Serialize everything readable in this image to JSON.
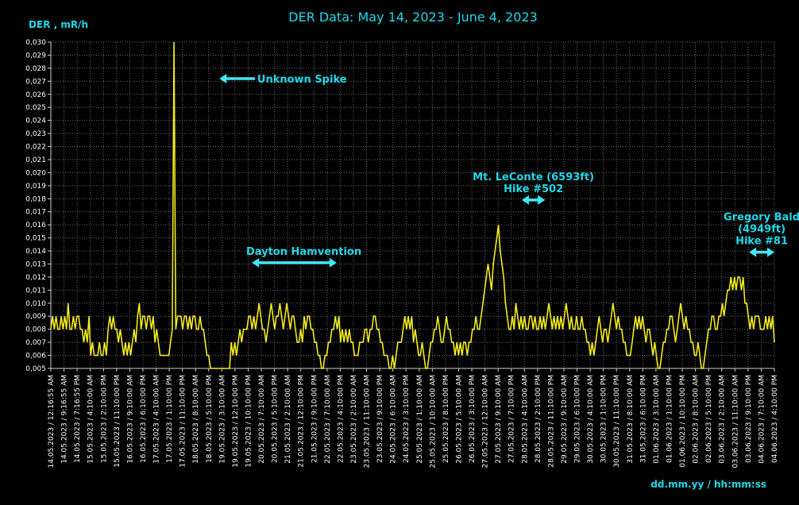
{
  "chart_data": {
    "type": "line",
    "title": "DER Data: May 14, 2023 - June 4, 2023",
    "ylabel": "DER , mR/h",
    "xlabel": "dd.mm.yy / hh:mm:ss",
    "ylim": [
      0.005,
      0.03
    ],
    "ytick_step": 0.001,
    "grid": true,
    "line_color": "#f4ec1c",
    "xticks": [
      "14.05.2023 / 12:16:55 AM",
      "14.05.2023 / 9:16:55 AM",
      "14.05.2023 / 7:16:55 PM",
      "15.05.2023 / 4:10:00 AM",
      "15.05.2023 / 2:10:00 PM",
      "15.05.2023 / 11:10:00 PM",
      "16.05.2023 / 9:10:00 AM",
      "16.05.2023 / 6:10:00 PM",
      "17.05.2023 / 4:10:00 AM",
      "17.05.2023 / 1:10:00 PM",
      "17.05.2023 / 11:10:00 PM",
      "18.05.2023 / 8:10:00 AM",
      "18.05.2023 / 5:10:00 PM",
      "19.05.2023 / 3:10:00 AM",
      "19.05.2023 / 12:10:00 PM",
      "19.05.2023 / 10:10:00 PM",
      "20.05.2023 / 7:10:00 AM",
      "20.05.2023 / 5:10:00 PM",
      "21.05.2023 / 2:10:00 AM",
      "21.05.2023 / 12:10:00 PM",
      "21.05.2023 / 9:10:00 PM",
      "22.05.2023 / 7:10:00 AM",
      "22.05.2023 / 4:10:00 PM",
      "23.05.2023 / 2:10:00 AM",
      "23.05.2023 / 11:10:00 AM",
      "23.05.2023 / 9:10:00 PM",
      "24.05.2023 / 6:10:00 AM",
      "24.05.2023 / 3:10:00 PM",
      "25.05.2023 / 1:10:00 AM",
      "25.05.2023 / 10:10:00 AM",
      "25.05.2023 / 8:10:00 PM",
      "26.05.2023 / 5:10:00 AM",
      "26.05.2023 / 3:10:00 PM",
      "27.05.2023 / 12:10:00 AM",
      "27.05.2023 / 9:10:00 AM",
      "27.05.2023 / 7:10:00 PM",
      "28.05.2023 / 4:10:00 AM",
      "28.05.2023 / 2:10:00 PM",
      "28.05.2023 / 11:10:00 PM",
      "29.05.2023 / 9:10:00 AM",
      "29.05.2023 / 6:10:00 PM",
      "30.05.2023 / 4:10:00 AM",
      "30.05.2023 / 1:10:00 PM",
      "30.05.2023 / 11:10:00 PM",
      "31.05.2023 / 8:10:00 AM",
      "31.05.2023 / 6:10:00 PM",
      "01.06.2023 / 3:10:00 AM",
      "01.06.2023 / 1:10:00 PM",
      "01.06.2023 / 10:10:00 PM",
      "02.06.2023 / 8:10:00 AM",
      "02.06.2023 / 5:10:00 PM",
      "03.06.2023 / 2:10:00 AM",
      "03.06.2023 / 11:10:00 AM",
      "03.06.2023 / 9:10:00 PM",
      "04.06.2023 / 7:10:00 AM",
      "04.06.2023 / 4:10:00 PM"
    ],
    "series": [
      {
        "values": [
          0.008,
          0.009,
          0.008,
          0.009,
          0.008,
          0.008,
          0.009,
          0.008,
          0.009,
          0.008,
          0.01,
          0.008,
          0.008,
          0.009,
          0.008,
          0.009,
          0.009,
          0.008,
          0.008,
          0.007,
          0.008,
          0.007,
          0.009,
          0.006,
          0.007,
          0.006,
          0.006,
          0.006,
          0.007,
          0.006,
          0.006,
          0.007,
          0.006,
          0.008,
          0.009,
          0.008,
          0.009,
          0.008,
          0.008,
          0.007,
          0.008,
          0.007,
          0.006,
          0.007,
          0.006,
          0.007,
          0.006,
          0.007,
          0.008,
          0.007,
          0.009,
          0.01,
          0.008,
          0.009,
          0.009,
          0.008,
          0.009,
          0.009,
          0.008,
          0.009,
          0.007,
          0.008,
          0.007,
          0.006,
          0.006,
          0.006,
          0.006,
          0.006,
          0.006,
          0.007,
          0.008,
          0.03,
          0.008,
          0.009,
          0.009,
          0.009,
          0.008,
          0.009,
          0.009,
          0.008,
          0.009,
          0.008,
          0.009,
          0.009,
          0.008,
          0.008,
          0.009,
          0.008,
          0.008,
          0.007,
          0.006,
          0.006,
          0.005,
          0.005,
          0.005,
          0.005,
          0.005,
          0.005,
          0.005,
          0.005,
          0.005,
          0.005,
          0.005,
          0.005,
          0.007,
          0.006,
          0.007,
          0.006,
          0.007,
          0.008,
          0.007,
          0.008,
          0.008,
          0.008,
          0.009,
          0.009,
          0.008,
          0.009,
          0.008,
          0.009,
          0.01,
          0.009,
          0.008,
          0.008,
          0.007,
          0.008,
          0.009,
          0.01,
          0.009,
          0.008,
          0.009,
          0.009,
          0.01,
          0.009,
          0.008,
          0.009,
          0.01,
          0.009,
          0.008,
          0.009,
          0.009,
          0.008,
          0.007,
          0.007,
          0.008,
          0.007,
          0.009,
          0.008,
          0.009,
          0.009,
          0.008,
          0.008,
          0.007,
          0.007,
          0.006,
          0.006,
          0.005,
          0.005,
          0.006,
          0.006,
          0.007,
          0.007,
          0.008,
          0.008,
          0.009,
          0.008,
          0.009,
          0.007,
          0.008,
          0.007,
          0.008,
          0.007,
          0.008,
          0.007,
          0.007,
          0.006,
          0.006,
          0.006,
          0.007,
          0.007,
          0.007,
          0.008,
          0.008,
          0.007,
          0.008,
          0.008,
          0.009,
          0.009,
          0.008,
          0.008,
          0.007,
          0.007,
          0.006,
          0.006,
          0.006,
          0.005,
          0.005,
          0.006,
          0.005,
          0.006,
          0.007,
          0.007,
          0.007,
          0.008,
          0.009,
          0.008,
          0.009,
          0.008,
          0.009,
          0.007,
          0.008,
          0.007,
          0.006,
          0.006,
          0.007,
          0.006,
          0.005,
          0.005,
          0.006,
          0.007,
          0.007,
          0.008,
          0.008,
          0.009,
          0.008,
          0.007,
          0.007,
          0.008,
          0.009,
          0.008,
          0.008,
          0.007,
          0.007,
          0.006,
          0.007,
          0.006,
          0.007,
          0.006,
          0.007,
          0.007,
          0.006,
          0.007,
          0.007,
          0.008,
          0.008,
          0.009,
          0.008,
          0.008,
          0.009,
          0.01,
          0.011,
          0.012,
          0.013,
          0.012,
          0.011,
          0.013,
          0.014,
          0.015,
          0.016,
          0.014,
          0.013,
          0.012,
          0.01,
          0.009,
          0.008,
          0.008,
          0.009,
          0.008,
          0.01,
          0.009,
          0.008,
          0.009,
          0.008,
          0.009,
          0.008,
          0.008,
          0.009,
          0.009,
          0.008,
          0.009,
          0.008,
          0.008,
          0.009,
          0.008,
          0.009,
          0.008,
          0.009,
          0.01,
          0.009,
          0.008,
          0.009,
          0.008,
          0.009,
          0.008,
          0.009,
          0.008,
          0.009,
          0.01,
          0.009,
          0.008,
          0.009,
          0.008,
          0.008,
          0.009,
          0.008,
          0.008,
          0.009,
          0.008,
          0.008,
          0.007,
          0.007,
          0.006,
          0.007,
          0.006,
          0.007,
          0.008,
          0.009,
          0.008,
          0.007,
          0.008,
          0.008,
          0.007,
          0.008,
          0.009,
          0.01,
          0.009,
          0.008,
          0.009,
          0.008,
          0.008,
          0.007,
          0.007,
          0.006,
          0.006,
          0.006,
          0.007,
          0.008,
          0.009,
          0.008,
          0.009,
          0.008,
          0.009,
          0.008,
          0.007,
          0.008,
          0.008,
          0.007,
          0.006,
          0.007,
          0.006,
          0.005,
          0.005,
          0.006,
          0.007,
          0.007,
          0.008,
          0.008,
          0.009,
          0.009,
          0.008,
          0.007,
          0.008,
          0.009,
          0.01,
          0.009,
          0.008,
          0.009,
          0.008,
          0.008,
          0.007,
          0.007,
          0.006,
          0.006,
          0.007,
          0.006,
          0.005,
          0.005,
          0.006,
          0.007,
          0.008,
          0.008,
          0.009,
          0.009,
          0.008,
          0.008,
          0.009,
          0.009,
          0.01,
          0.009,
          0.01,
          0.011,
          0.011,
          0.012,
          0.011,
          0.012,
          0.011,
          0.012,
          0.012,
          0.011,
          0.012,
          0.01,
          0.01,
          0.009,
          0.008,
          0.009,
          0.008,
          0.009,
          0.009,
          0.009,
          0.008,
          0.008,
          0.008,
          0.009,
          0.008,
          0.009,
          0.008,
          0.009,
          0.007
        ]
      }
    ],
    "annotations": [
      {
        "text": "Unknown Spike",
        "arrow_x_frac": [
          0.233,
          0.282
        ],
        "y": 0.0272,
        "direction": "left"
      },
      {
        "text": "Dayton Hamvention",
        "arrow_x_frac": [
          0.278,
          0.395
        ],
        "y": 0.0131,
        "direction": "both"
      },
      {
        "text": "Mt. LeConte (6593ft)",
        "text2": "Hike #502",
        "arrow_x_frac": [
          0.651,
          0.683
        ],
        "y": 0.0179,
        "direction": "both"
      },
      {
        "text": "Gregory Bald",
        "text2": "(4949ft)",
        "text3": "Hike #81",
        "arrow_x_frac": [
          0.965,
          1.0
        ],
        "y": 0.0139,
        "direction": "both"
      }
    ]
  }
}
